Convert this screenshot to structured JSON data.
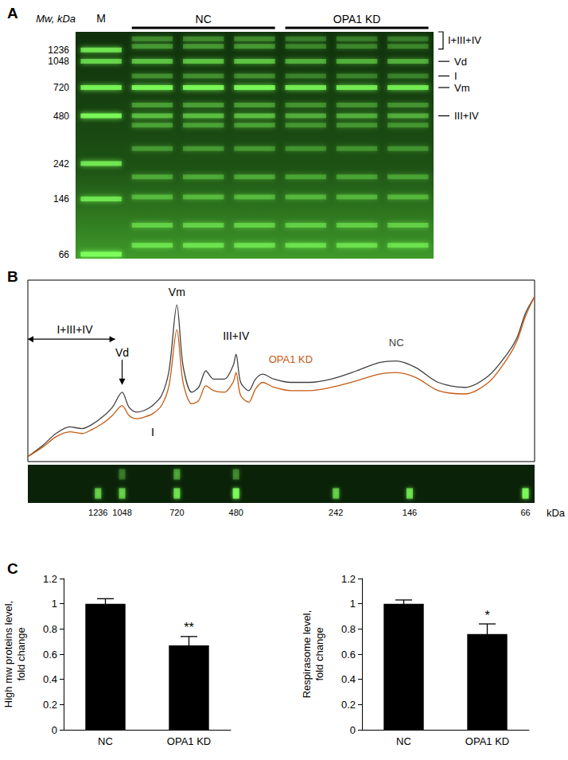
{
  "chart_data": [
    {
      "type": "gel",
      "title": "A",
      "y_label": "Mw, kDa",
      "log": "y",
      "color": "#7dff5a",
      "ylim": [
        62,
        1600
      ],
      "yticks": [
        66,
        146,
        242,
        480,
        720,
        1048,
        1236
      ],
      "categories": [
        "M",
        null,
        null,
        null,
        null,
        null,
        null
      ],
      "groups": [
        {
          "label": "NC",
          "lanes": [
            1,
            3
          ]
        },
        {
          "label": "OPA1 KD",
          "lanes": [
            4,
            6
          ]
        }
      ],
      "lanes": [
        {
          "bands": [
            {
              "mw": 1236,
              "intensity": 0.75
            },
            {
              "mw": 1048,
              "intensity": 0.65
            },
            {
              "mw": 720,
              "intensity": 0.85
            },
            {
              "mw": 480,
              "intensity": 0.9
            },
            {
              "mw": 242,
              "intensity": 0.75
            },
            {
              "mw": 146,
              "intensity": 0.7
            },
            {
              "mw": 66,
              "intensity": 1
            }
          ]
        },
        {
          "bands": [
            {
              "mw": 1450,
              "intensity": 0.3
            },
            {
              "mw": 1300,
              "intensity": 0.35
            },
            {
              "mw": 1048,
              "intensity": 0.55
            },
            {
              "mw": 850,
              "intensity": 0.3
            },
            {
              "mw": 720,
              "intensity": 0.9
            },
            {
              "mw": 560,
              "intensity": 0.35
            },
            {
              "mw": 480,
              "intensity": 0.5
            },
            {
              "mw": 420,
              "intensity": 0.35
            },
            {
              "mw": 300,
              "intensity": 0.3
            },
            {
              "mw": 200,
              "intensity": 0.35
            },
            {
              "mw": 150,
              "intensity": 0.4
            },
            {
              "mw": 100,
              "intensity": 0.5
            },
            {
              "mw": 75,
              "intensity": 0.6
            }
          ]
        },
        {
          "bands": [
            {
              "mw": 1450,
              "intensity": 0.3
            },
            {
              "mw": 1300,
              "intensity": 0.35
            },
            {
              "mw": 1048,
              "intensity": 0.55
            },
            {
              "mw": 850,
              "intensity": 0.3
            },
            {
              "mw": 720,
              "intensity": 0.9
            },
            {
              "mw": 560,
              "intensity": 0.35
            },
            {
              "mw": 480,
              "intensity": 0.5
            },
            {
              "mw": 420,
              "intensity": 0.35
            },
            {
              "mw": 300,
              "intensity": 0.3
            },
            {
              "mw": 200,
              "intensity": 0.35
            },
            {
              "mw": 150,
              "intensity": 0.4
            },
            {
              "mw": 100,
              "intensity": 0.5
            },
            {
              "mw": 75,
              "intensity": 0.6
            }
          ]
        },
        {
          "bands": [
            {
              "mw": 1450,
              "intensity": 0.3
            },
            {
              "mw": 1300,
              "intensity": 0.35
            },
            {
              "mw": 1048,
              "intensity": 0.55
            },
            {
              "mw": 850,
              "intensity": 0.3
            },
            {
              "mw": 720,
              "intensity": 0.9
            },
            {
              "mw": 560,
              "intensity": 0.35
            },
            {
              "mw": 480,
              "intensity": 0.5
            },
            {
              "mw": 420,
              "intensity": 0.35
            },
            {
              "mw": 300,
              "intensity": 0.3
            },
            {
              "mw": 200,
              "intensity": 0.35
            },
            {
              "mw": 150,
              "intensity": 0.4
            },
            {
              "mw": 100,
              "intensity": 0.5
            },
            {
              "mw": 75,
              "intensity": 0.6
            }
          ]
        },
        {
          "bands": [
            {
              "mw": 1450,
              "intensity": 0.25
            },
            {
              "mw": 1300,
              "intensity": 0.28
            },
            {
              "mw": 1048,
              "intensity": 0.45
            },
            {
              "mw": 850,
              "intensity": 0.25
            },
            {
              "mw": 720,
              "intensity": 0.8
            },
            {
              "mw": 560,
              "intensity": 0.3
            },
            {
              "mw": 480,
              "intensity": 0.42
            },
            {
              "mw": 420,
              "intensity": 0.3
            },
            {
              "mw": 300,
              "intensity": 0.28
            },
            {
              "mw": 200,
              "intensity": 0.32
            },
            {
              "mw": 150,
              "intensity": 0.38
            },
            {
              "mw": 100,
              "intensity": 0.48
            },
            {
              "mw": 75,
              "intensity": 0.58
            }
          ]
        },
        {
          "bands": [
            {
              "mw": 1450,
              "intensity": 0.25
            },
            {
              "mw": 1300,
              "intensity": 0.28
            },
            {
              "mw": 1048,
              "intensity": 0.45
            },
            {
              "mw": 850,
              "intensity": 0.25
            },
            {
              "mw": 720,
              "intensity": 0.8
            },
            {
              "mw": 560,
              "intensity": 0.3
            },
            {
              "mw": 480,
              "intensity": 0.42
            },
            {
              "mw": 420,
              "intensity": 0.3
            },
            {
              "mw": 300,
              "intensity": 0.28
            },
            {
              "mw": 200,
              "intensity": 0.32
            },
            {
              "mw": 150,
              "intensity": 0.38
            },
            {
              "mw": 100,
              "intensity": 0.48
            },
            {
              "mw": 75,
              "intensity": 0.58
            }
          ]
        },
        {
          "bands": [
            {
              "mw": 1450,
              "intensity": 0.25
            },
            {
              "mw": 1300,
              "intensity": 0.28
            },
            {
              "mw": 1048,
              "intensity": 0.45
            },
            {
              "mw": 850,
              "intensity": 0.25
            },
            {
              "mw": 720,
              "intensity": 0.8
            },
            {
              "mw": 560,
              "intensity": 0.3
            },
            {
              "mw": 480,
              "intensity": 0.42
            },
            {
              "mw": 420,
              "intensity": 0.3
            },
            {
              "mw": 300,
              "intensity": 0.28
            },
            {
              "mw": 200,
              "intensity": 0.32
            },
            {
              "mw": 150,
              "intensity": 0.38
            },
            {
              "mw": 100,
              "intensity": 0.48
            },
            {
              "mw": 75,
              "intensity": 0.58
            }
          ]
        }
      ],
      "annotations": [
        {
          "text": "I+III+IV",
          "span": [
            1250,
            1600
          ]
        },
        {
          "text": "Vd",
          "y": 1048
        },
        {
          "text": "I",
          "y": 850
        },
        {
          "text": "Vm",
          "y": 720
        },
        {
          "text": "III+IV",
          "y": 480
        }
      ]
    },
    {
      "type": "line",
      "title": "B",
      "x_label": "kDa",
      "log": "x",
      "tick_labels": "x",
      "xlim": [
        2000,
        62
      ],
      "xticks": [
        1236,
        1048,
        720,
        480,
        242,
        146,
        66
      ],
      "ylim": [
        0,
        110
      ],
      "x": [
        2000,
        1800,
        1650,
        1500,
        1380,
        1300,
        1200,
        1120,
        1048,
        1000,
        950,
        900,
        850,
        800,
        760,
        720,
        690,
        650,
        620,
        590,
        560,
        520,
        490,
        480,
        465,
        440,
        420,
        400,
        370,
        330,
        290,
        250,
        210,
        180,
        160,
        140,
        120,
        100,
        85,
        75,
        70,
        66,
        62
      ],
      "series": [
        {
          "name": "NC",
          "color": "#404040",
          "label_at": [
            160,
            72
          ],
          "values": [
            3,
            10,
            17,
            21,
            20,
            22,
            27,
            33,
            42,
            33,
            30,
            31,
            34,
            40,
            55,
            95,
            58,
            42,
            45,
            55,
            50,
            50,
            58,
            65,
            48,
            43,
            50,
            53,
            50,
            48,
            48,
            50,
            55,
            60,
            61,
            57,
            48,
            45,
            52,
            65,
            75,
            90,
            100
          ]
        },
        {
          "name": "OPA1 KD",
          "color": "#c55a11",
          "label_at": [
            330,
            62
          ],
          "values": [
            3,
            9,
            15,
            18,
            17,
            19,
            23,
            28,
            34,
            28,
            26,
            27,
            29,
            34,
            46,
            80,
            48,
            35,
            37,
            46,
            43,
            42,
            48,
            54,
            40,
            36,
            44,
            48,
            45,
            43,
            43,
            45,
            49,
            53,
            54,
            51,
            43,
            41,
            48,
            62,
            73,
            88,
            100
          ]
        }
      ],
      "annotations": [
        {
          "text": "I+III+IV",
          "x": 1450,
          "y": 80,
          "span": [
            2000,
            1100
          ]
        },
        {
          "text": "Vd",
          "x": 1048,
          "y": 66,
          "arrow_to": [
            1048,
            45
          ]
        },
        {
          "text": "I",
          "x": 850,
          "y": 18
        },
        {
          "text": "Vm",
          "x": 720,
          "y": 103
        },
        {
          "text": "III+IV",
          "x": 480,
          "y": 76
        }
      ],
      "strip": {
        "color": "#7dff5a",
        "lanes": [
          {
            "bands": [
              {
                "mw": 1048,
                "intensity": 0.25
              },
              {
                "mw": 720,
                "intensity": 0.4
              },
              {
                "mw": 480,
                "intensity": 0.3
              }
            ]
          },
          {
            "bands": [
              {
                "mw": 1236,
                "intensity": 0.6
              },
              {
                "mw": 1048,
                "intensity": 0.6
              },
              {
                "mw": 720,
                "intensity": 0.7
              },
              {
                "mw": 480,
                "intensity": 0.9
              },
              {
                "mw": 242,
                "intensity": 0.6
              },
              {
                "mw": 146,
                "intensity": 0.7
              },
              {
                "mw": 66,
                "intensity": 0.9
              }
            ]
          }
        ]
      }
    },
    {
      "type": "bar",
      "title": "C",
      "y_label": "High mw proteins level, fold change",
      "color": "#000000",
      "categories": [
        "NC",
        "OPA1 KD"
      ],
      "values": [
        1.0,
        0.67
      ],
      "errors": [
        0.04,
        0.07
      ],
      "significance": [
        null,
        "**"
      ],
      "ylim": [
        0,
        1.2
      ],
      "yticks": [
        0,
        0.2,
        0.4,
        0.6,
        0.8,
        1,
        1.2
      ]
    },
    {
      "type": "bar",
      "y_label": "Respirasome level, fold change",
      "color": "#000000",
      "categories": [
        "NC",
        "OPA1 KD"
      ],
      "values": [
        1.0,
        0.76
      ],
      "errors": [
        0.03,
        0.08
      ],
      "significance": [
        null,
        "*"
      ],
      "ylim": [
        0,
        1.2
      ],
      "yticks": [
        0,
        0.2,
        0.4,
        0.6,
        0.8,
        1,
        1.2
      ]
    }
  ]
}
